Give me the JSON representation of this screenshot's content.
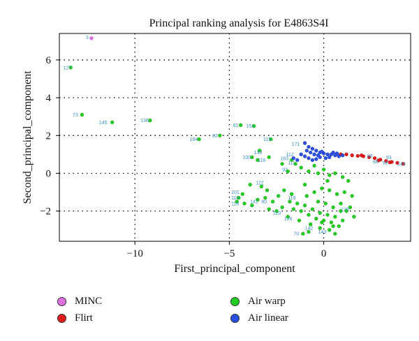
{
  "chart_data": {
    "type": "scatter",
    "title": "Principal ranking analysis for E4863S4I",
    "xlabel": "First_principal_component",
    "ylabel": "Second_principal_component",
    "xlim": [
      -14,
      4.6
    ],
    "ylim": [
      -3.6,
      7.4
    ],
    "xticks": [
      -10,
      -5,
      0
    ],
    "yticks": [
      -2,
      0,
      2,
      4,
      6
    ],
    "xtick_labels": [
      "−10",
      "−5",
      "0"
    ],
    "ytick_labels": [
      "−2",
      "0",
      "2",
      "4",
      "6"
    ],
    "grid": true,
    "legend_position": "bottom",
    "series": [
      {
        "name": "MINC",
        "color": "#e070e0",
        "points": [
          [
            -12.3,
            7.15
          ]
        ],
        "labels": [
          {
            "text": "3",
            "x": -12.6,
            "y": 7.2
          }
        ]
      },
      {
        "name": "Flirt",
        "color": "#e01b1b",
        "points": [
          [
            1.2,
            1.0
          ],
          [
            1.5,
            0.95
          ],
          [
            1.8,
            0.92
          ],
          [
            2.1,
            0.9
          ],
          [
            2.4,
            0.85
          ],
          [
            2.7,
            0.8
          ],
          [
            3.0,
            0.72
          ],
          [
            3.3,
            0.65
          ],
          [
            3.6,
            0.6
          ],
          [
            3.9,
            0.55
          ],
          [
            4.2,
            0.5
          ],
          [
            0.9,
            1.0
          ],
          [
            2.0,
            0.95
          ],
          [
            2.9,
            0.68
          ],
          [
            3.5,
            0.58
          ]
        ],
        "labels": [
          {
            "text": "88",
            "x": 2.3,
            "y": 0.92
          },
          {
            "text": "68",
            "x": 2.6,
            "y": 0.6
          },
          {
            "text": "58",
            "x": 3.1,
            "y": 0.55
          },
          {
            "text": "146",
            "x": 3.9,
            "y": 0.5
          },
          {
            "text": "93",
            "x": 3.3,
            "y": 0.85
          }
        ]
      },
      {
        "name": "Air warp",
        "color": "#22cc22",
        "points": [
          [
            -13.4,
            5.6
          ],
          [
            -12.8,
            3.1
          ],
          [
            -11.2,
            2.7
          ],
          [
            -9.2,
            2.8
          ],
          [
            -6.6,
            1.8
          ],
          [
            -5.5,
            2.0
          ],
          [
            -4.4,
            2.55
          ],
          [
            -3.7,
            2.5
          ],
          [
            -2.8,
            1.8
          ],
          [
            -3.4,
            1.2
          ],
          [
            -3.5,
            0.7
          ],
          [
            -3.8,
            0.85
          ],
          [
            -2.9,
            0.85
          ],
          [
            -2.2,
            0.5
          ],
          [
            -1.9,
            0.1
          ],
          [
            -1.7,
            0.7
          ],
          [
            -1.5,
            0.5
          ],
          [
            -1.2,
            0.3
          ],
          [
            -0.8,
            0.1
          ],
          [
            -0.5,
            0.4
          ],
          [
            -0.3,
            0.0
          ],
          [
            0.0,
            0.2
          ],
          [
            0.3,
            -0.1
          ],
          [
            0.6,
            0.0
          ],
          [
            1.0,
            -0.2
          ],
          [
            1.3,
            -0.4
          ],
          [
            -3.3,
            -0.7
          ],
          [
            -3.0,
            -0.9
          ],
          [
            -3.9,
            -0.6
          ],
          [
            -4.3,
            -1.1
          ],
          [
            -4.5,
            -1.3
          ],
          [
            -4.2,
            -1.6
          ],
          [
            -4.6,
            -1.5
          ],
          [
            -3.8,
            -1.7
          ],
          [
            -3.5,
            -1.4
          ],
          [
            -3.1,
            -1.3
          ],
          [
            -2.7,
            -1.5
          ],
          [
            -2.4,
            -1.2
          ],
          [
            -2.2,
            -1.8
          ],
          [
            -1.8,
            -1.5
          ],
          [
            -1.6,
            -1.9
          ],
          [
            -1.4,
            -1.6
          ],
          [
            -1.2,
            -2.0
          ],
          [
            -1.0,
            -1.7
          ],
          [
            -0.8,
            -2.2
          ],
          [
            -0.6,
            -1.9
          ],
          [
            -0.4,
            -2.4
          ],
          [
            -0.2,
            -2.1
          ],
          [
            0.0,
            -2.5
          ],
          [
            0.2,
            -2.2
          ],
          [
            0.4,
            -2.6
          ],
          [
            0.6,
            -2.3
          ],
          [
            0.8,
            -2.8
          ],
          [
            1.0,
            -2.5
          ],
          [
            1.2,
            -2.0
          ],
          [
            1.4,
            -1.8
          ],
          [
            1.6,
            -2.3
          ],
          [
            -0.9,
            -1.2
          ],
          [
            -0.5,
            -1.0
          ],
          [
            -0.1,
            -0.8
          ],
          [
            0.3,
            -0.9
          ],
          [
            0.7,
            -1.1
          ],
          [
            1.1,
            -1.0
          ],
          [
            1.5,
            -1.2
          ],
          [
            -0.3,
            -1.5
          ],
          [
            0.1,
            -1.6
          ],
          [
            0.5,
            -1.8
          ],
          [
            0.9,
            -1.6
          ],
          [
            -1.9,
            -2.3
          ],
          [
            -1.3,
            -2.5
          ],
          [
            -0.7,
            -2.7
          ],
          [
            -0.2,
            -2.9
          ],
          [
            0.3,
            -3.0
          ],
          [
            0.6,
            -3.2
          ],
          [
            -0.8,
            -3.1
          ],
          [
            -1.1,
            -3.2
          ],
          [
            -2.5,
            -2.0
          ],
          [
            -2.9,
            -1.9
          ],
          [
            -0.1,
            -2.6
          ],
          [
            0.5,
            -2.8
          ],
          [
            0.9,
            -2.0
          ],
          [
            -1.7,
            -1.1
          ],
          [
            -2.1,
            -0.9
          ],
          [
            -1.0,
            -0.6
          ],
          [
            0.2,
            -0.4
          ]
        ],
        "labels": [
          {
            "text": "127",
            "x": -13.8,
            "y": 5.6
          },
          {
            "text": "73",
            "x": -13.3,
            "y": 3.1
          },
          {
            "text": "145",
            "x": -11.9,
            "y": 2.7
          },
          {
            "text": "136",
            "x": -9.7,
            "y": 2.8
          },
          {
            "text": "164",
            "x": -7.1,
            "y": 1.8
          },
          {
            "text": "82",
            "x": -5.9,
            "y": 2.0
          },
          {
            "text": "81",
            "x": -4.8,
            "y": 2.55
          },
          {
            "text": "151",
            "x": -4.1,
            "y": 2.5
          },
          {
            "text": "119",
            "x": -3.2,
            "y": 1.8
          },
          {
            "text": "133",
            "x": -3.7,
            "y": 1.1
          },
          {
            "text": "100",
            "x": -4.3,
            "y": 0.85
          },
          {
            "text": "118",
            "x": -3.5,
            "y": 0.7
          },
          {
            "text": "92",
            "x": -2.2,
            "y": 0.2
          },
          {
            "text": "101",
            "x": -4.9,
            "y": -1.0
          },
          {
            "text": "110",
            "x": -4.9,
            "y": -1.3
          },
          {
            "text": "116",
            "x": -4.9,
            "y": -1.6
          },
          {
            "text": "141",
            "x": -3.9,
            "y": -1.5
          },
          {
            "text": "80",
            "x": -3.3,
            "y": -1.5
          },
          {
            "text": "119",
            "x": -1.9,
            "y": -1.3
          },
          {
            "text": "120",
            "x": -2.7,
            "y": -2.1
          },
          {
            "text": "129",
            "x": 0.9,
            "y": -1.9
          },
          {
            "text": "126",
            "x": -2.1,
            "y": -2.4
          },
          {
            "text": "142",
            "x": -1.0,
            "y": -2.9
          },
          {
            "text": "70",
            "x": -1.6,
            "y": -3.2
          },
          {
            "text": "143",
            "x": -0.3,
            "y": -3.1
          },
          {
            "text": "122",
            "x": -3.6,
            "y": -0.5
          }
        ]
      },
      {
        "name": "Air linear",
        "color": "#2a4fe0",
        "points": [
          [
            -1.0,
            1.6
          ],
          [
            -0.8,
            1.4
          ],
          [
            -0.6,
            1.3
          ],
          [
            -0.4,
            1.2
          ],
          [
            -0.2,
            1.1
          ],
          [
            0.0,
            1.05
          ],
          [
            0.2,
            1.0
          ],
          [
            0.4,
            1.0
          ],
          [
            0.6,
            0.95
          ],
          [
            0.8,
            0.9
          ],
          [
            -1.2,
            1.0
          ],
          [
            -1.0,
            0.9
          ],
          [
            -0.8,
            0.8
          ],
          [
            -0.6,
            0.7
          ],
          [
            -0.4,
            0.75
          ],
          [
            -0.2,
            0.85
          ],
          [
            0.1,
            0.8
          ],
          [
            0.3,
            0.85
          ],
          [
            -0.7,
            1.1
          ],
          [
            -0.5,
            1.0
          ],
          [
            -0.3,
            0.95
          ],
          [
            0.5,
            1.1
          ],
          [
            1.0,
            0.95
          ],
          [
            -1.4,
            0.7
          ],
          [
            -1.6,
            0.8
          ],
          [
            -0.9,
            1.2
          ],
          [
            0.7,
            1.05
          ],
          [
            -0.1,
            1.15
          ]
        ],
        "labels": [
          {
            "text": "171",
            "x": -1.7,
            "y": 1.55
          },
          {
            "text": "112",
            "x": -2.0,
            "y": 1.0
          },
          {
            "text": "163",
            "x": -2.3,
            "y": 0.8
          },
          {
            "text": "111",
            "x": -1.9,
            "y": 0.55
          }
        ]
      }
    ]
  },
  "legend": {
    "items": [
      {
        "name": "MINC",
        "color": "#e070e0"
      },
      {
        "name": "Flirt",
        "color": "#e01b1b"
      },
      {
        "name": "Air warp",
        "color": "#22cc22"
      },
      {
        "name": "Air linear",
        "color": "#2a4fe0"
      }
    ]
  }
}
